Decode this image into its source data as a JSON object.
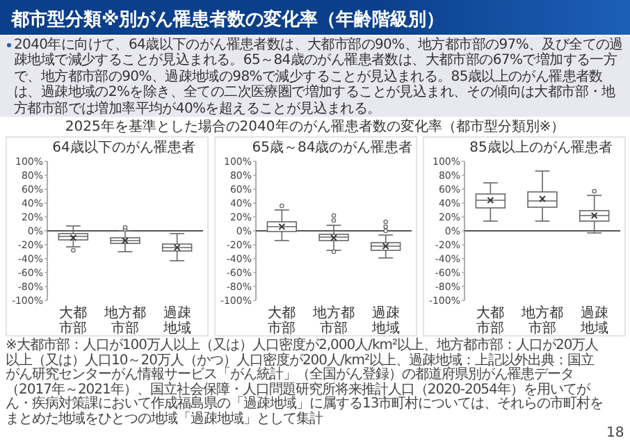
{
  "chart_data": [
    {
      "type": "other",
      "title": "都市型分類※別がん罹患者数の変化率（年齢階級別）",
      "annotations": [
        "2040年に向けて、64歳以下のがん罹患者数は、大都市部の90%、地方都市部の97%、及び全ての過疎地域で減少することが見込まれる。65～84歳のがん罹患者数は、大都市部の67%で増加する一方で、地方都市部の90%、過疎地域の98%で減少することが見込まれる。85歳以上のがん罹患者数は、過疎地域の2%を除き、全ての二次医療圏で増加することが見込まれ、その傾向は大都市部・地方都市部では増加率平均が40%を超えることが見込まれる。",
        "2025年を基準とした場合の2040年のがん罹患者数の変化率（都市型分類別※）",
        "※大都市部：人口が100万人以上（又は）人口密度が2,000人/km²以上、地方都市部：人口が20万人以上（又は）人口10～20万人（かつ）人口密度が200人/km²以上、過疎地域：上記以外",
        "出典：国立がん研究センターがん情報サービス「がん統計」（全国がん登録）の都道府県別がん罹患データ（2017年～2021年）、国立社会保障・人口問題研究所将来推計人口（2020-2054年）を用いてがん・疾病対策課において作成",
        "福島県の「過疎地域」に属する13市町村については、それらの市町村をまとめた地域をひとつの地域「過疎地域」として集計",
        "18"
      ]
    },
    {
      "type": "box",
      "title": "64歳以下のがん罹患者",
      "categories": [
        "大都市部",
        "地方都市部",
        "過疎地域"
      ],
      "ylim": [
        -100,
        100
      ],
      "yticks": [
        {
          "value": 100,
          "label": "100%"
        },
        {
          "value": 80,
          "label": "80%"
        },
        {
          "value": 60,
          "label": "60%"
        },
        {
          "value": 40,
          "label": "40%"
        },
        {
          "value": 20,
          "label": "20%"
        },
        {
          "value": 0,
          "label": "0%"
        },
        {
          "value": -20,
          "label": "-20%"
        },
        {
          "value": -40,
          "label": "-40%"
        },
        {
          "value": -60,
          "label": "-60%"
        },
        {
          "value": -80,
          "label": "-80%"
        },
        {
          "value": -100,
          "label": "-100%"
        }
      ],
      "ref_lines": [
        {
          "axis": "y",
          "value": 0
        }
      ],
      "boxes": [
        {
          "low": -23,
          "q1": -13,
          "median": -8,
          "q3": -4,
          "high": 7,
          "mean": -10,
          "outliers": [
            -28
          ]
        },
        {
          "low": -30,
          "q1": -18,
          "median": -14,
          "q3": -10,
          "high": 0,
          "mean": -14,
          "outliers": [
            2,
            5
          ]
        },
        {
          "low": -43,
          "q1": -29,
          "median": -24,
          "q3": -19,
          "high": -4,
          "mean": -24
        }
      ]
    },
    {
      "type": "box",
      "title": "65歳～84歳のがん罹患者",
      "categories": [
        "大都市部",
        "地方都市部",
        "過疎地域"
      ],
      "ylim": [
        -100,
        100
      ],
      "yticks": [
        {
          "value": 100,
          "label": "100%"
        },
        {
          "value": 80,
          "label": "80%"
        },
        {
          "value": 60,
          "label": "60%"
        },
        {
          "value": 40,
          "label": "40%"
        },
        {
          "value": 20,
          "label": "20%"
        },
        {
          "value": 0,
          "label": "0%"
        },
        {
          "value": -20,
          "label": "-20%"
        },
        {
          "value": -40,
          "label": "-40%"
        },
        {
          "value": -60,
          "label": "-60%"
        },
        {
          "value": -80,
          "label": "-80%"
        },
        {
          "value": -100,
          "label": "-100%"
        }
      ],
      "ref_lines": [
        {
          "axis": "y",
          "value": 0
        }
      ],
      "boxes": [
        {
          "low": -14,
          "q1": -1,
          "median": 6,
          "q3": 13,
          "high": 30,
          "mean": 6,
          "outliers": [
            36
          ]
        },
        {
          "low": -28,
          "q1": -14,
          "median": -9,
          "q3": -5,
          "high": 8,
          "mean": -10,
          "outliers": [
            15,
            22,
            -30
          ]
        },
        {
          "low": -39,
          "q1": -28,
          "median": -22,
          "q3": -17,
          "high": -6,
          "mean": -22,
          "outliers": [
            0,
            6,
            13
          ]
        }
      ]
    },
    {
      "type": "box",
      "title": "85歳以上のがん罹患者",
      "categories": [
        "大都市部",
        "地方都市部",
        "過疎地域"
      ],
      "ylim": [
        -100,
        100
      ],
      "yticks": [
        {
          "value": 100,
          "label": "100%"
        },
        {
          "value": 80,
          "label": "80%"
        },
        {
          "value": 60,
          "label": "60%"
        },
        {
          "value": 40,
          "label": "40%"
        },
        {
          "value": 20,
          "label": "20%"
        },
        {
          "value": 0,
          "label": "0%"
        },
        {
          "value": -20,
          "label": "-20%"
        },
        {
          "value": -40,
          "label": "-40%"
        },
        {
          "value": -60,
          "label": "-60%"
        },
        {
          "value": -80,
          "label": "-80%"
        },
        {
          "value": -100,
          "label": "-100%"
        }
      ],
      "ref_lines": [
        {
          "axis": "y",
          "value": 0
        }
      ],
      "boxes": [
        {
          "low": 14,
          "q1": 33,
          "median": 44,
          "q3": 53,
          "high": 69,
          "mean": 44
        },
        {
          "low": 14,
          "q1": 34,
          "median": 43,
          "q3": 56,
          "high": 86,
          "mean": 46
        },
        {
          "low": -3,
          "q1": 14,
          "median": 22,
          "q3": 29,
          "high": 51,
          "mean": 22,
          "outliers": [
            57
          ]
        }
      ]
    }
  ]
}
